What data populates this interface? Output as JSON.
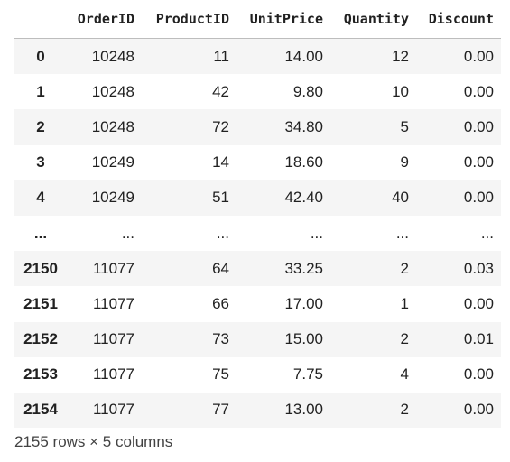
{
  "table": {
    "index_header": "",
    "columns": [
      "OrderID",
      "ProductID",
      "UnitPrice",
      "Quantity",
      "Discount"
    ],
    "rows": [
      {
        "index": "0",
        "cells": [
          "10248",
          "11",
          "14.00",
          "12",
          "0.00"
        ]
      },
      {
        "index": "1",
        "cells": [
          "10248",
          "42",
          "9.80",
          "10",
          "0.00"
        ]
      },
      {
        "index": "2",
        "cells": [
          "10248",
          "72",
          "34.80",
          "5",
          "0.00"
        ]
      },
      {
        "index": "3",
        "cells": [
          "10249",
          "14",
          "18.60",
          "9",
          "0.00"
        ]
      },
      {
        "index": "4",
        "cells": [
          "10249",
          "51",
          "42.40",
          "40",
          "0.00"
        ]
      },
      {
        "index": "...",
        "cells": [
          "...",
          "...",
          "...",
          "...",
          "..."
        ]
      },
      {
        "index": "2150",
        "cells": [
          "11077",
          "64",
          "33.25",
          "2",
          "0.03"
        ]
      },
      {
        "index": "2151",
        "cells": [
          "11077",
          "66",
          "17.00",
          "1",
          "0.00"
        ]
      },
      {
        "index": "2152",
        "cells": [
          "11077",
          "73",
          "15.00",
          "2",
          "0.01"
        ]
      },
      {
        "index": "2153",
        "cells": [
          "11077",
          "75",
          "7.75",
          "4",
          "0.00"
        ]
      },
      {
        "index": "2154",
        "cells": [
          "11077",
          "77",
          "13.00",
          "2",
          "0.00"
        ]
      }
    ]
  },
  "footer": {
    "summary": "2155 rows × 5 columns"
  }
}
